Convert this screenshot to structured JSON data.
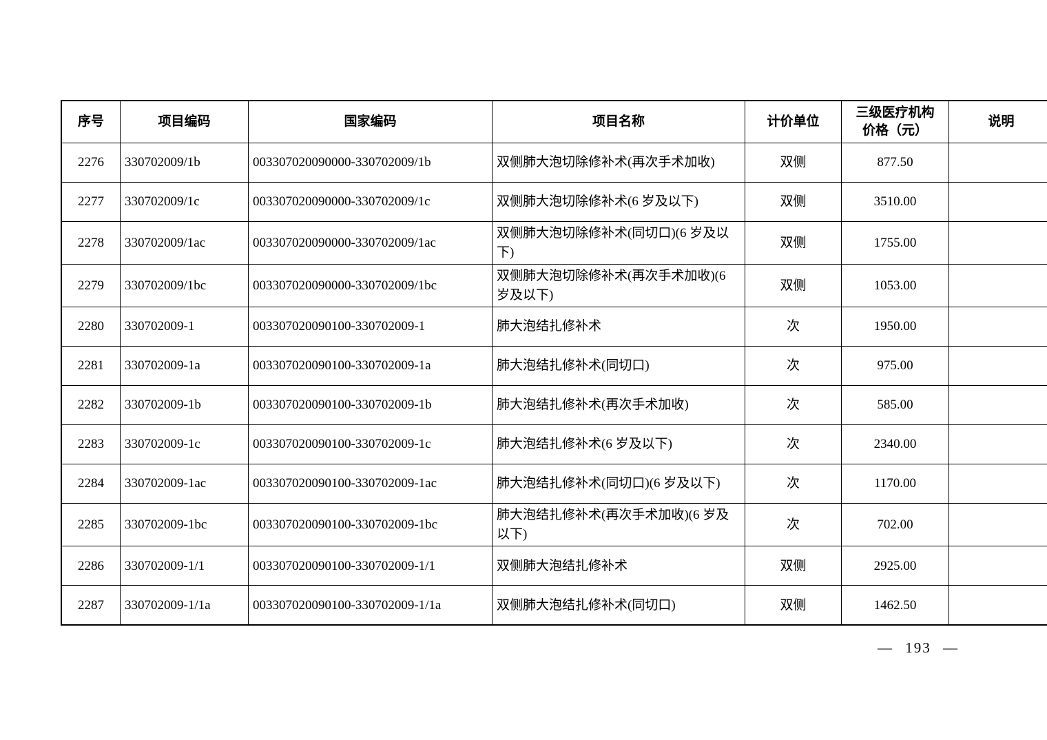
{
  "table": {
    "headers": [
      "序号",
      "项目编码",
      "国家编码",
      "项目名称",
      "计价单位",
      "三级医疗机构\n价格（元）",
      "说明"
    ],
    "rows": [
      [
        "2276",
        "330702009/1b",
        "003307020090000-330702009/1b",
        "双侧肺大泡切除修补术(再次手术加收)",
        "双侧",
        "877.50",
        ""
      ],
      [
        "2277",
        "330702009/1c",
        "003307020090000-330702009/1c",
        "双侧肺大泡切除修补术(6 岁及以下)",
        "双侧",
        "3510.00",
        ""
      ],
      [
        "2278",
        "330702009/1ac",
        "003307020090000-330702009/1ac",
        "双侧肺大泡切除修补术(同切口)(6 岁及以下)",
        "双侧",
        "1755.00",
        ""
      ],
      [
        "2279",
        "330702009/1bc",
        "003307020090000-330702009/1bc",
        "双侧肺大泡切除修补术(再次手术加收)(6 岁及以下)",
        "双侧",
        "1053.00",
        ""
      ],
      [
        "2280",
        "330702009-1",
        "003307020090100-330702009-1",
        "肺大泡结扎修补术",
        "次",
        "1950.00",
        ""
      ],
      [
        "2281",
        "330702009-1a",
        "003307020090100-330702009-1a",
        "肺大泡结扎修补术(同切口)",
        "次",
        "975.00",
        ""
      ],
      [
        "2282",
        "330702009-1b",
        "003307020090100-330702009-1b",
        "肺大泡结扎修补术(再次手术加收)",
        "次",
        "585.00",
        ""
      ],
      [
        "2283",
        "330702009-1c",
        "003307020090100-330702009-1c",
        "肺大泡结扎修补术(6 岁及以下)",
        "次",
        "2340.00",
        ""
      ],
      [
        "2284",
        "330702009-1ac",
        "003307020090100-330702009-1ac",
        "肺大泡结扎修补术(同切口)(6 岁及以下)",
        "次",
        "1170.00",
        ""
      ],
      [
        "2285",
        "330702009-1bc",
        "003307020090100-330702009-1bc",
        "肺大泡结扎修补术(再次手术加收)(6 岁及以下)",
        "次",
        "702.00",
        ""
      ],
      [
        "2286",
        "330702009-1/1",
        "003307020090100-330702009-1/1",
        "双侧肺大泡结扎修补术",
        "双侧",
        "2925.00",
        ""
      ],
      [
        "2287",
        "330702009-1/1a",
        "003307020090100-330702009-1/1a",
        "双侧肺大泡结扎修补术(同切口)",
        "双侧",
        "1462.50",
        ""
      ]
    ],
    "column_keys": [
      "seq",
      "project-code",
      "national-code",
      "name",
      "unit",
      "price",
      "note"
    ]
  },
  "footer": {
    "page_number": "— 193 —"
  }
}
